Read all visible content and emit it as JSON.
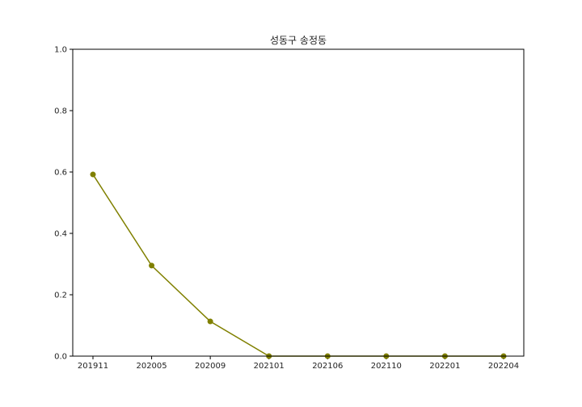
{
  "chart_data": {
    "type": "line",
    "title": "성동구 송정동",
    "xlabel": "",
    "ylabel": "",
    "categories": [
      "201911",
      "202005",
      "202009",
      "202101",
      "202106",
      "202110",
      "202201",
      "202204"
    ],
    "series": [
      {
        "values": [
          0.592,
          0.295,
          0.113,
          0.0,
          0.0,
          0.0,
          0.0,
          0.0
        ]
      }
    ],
    "ylim": [
      0.0,
      1.0
    ],
    "yticks": [
      "0.0",
      "0.2",
      "0.4",
      "0.6",
      "0.8",
      "1.0"
    ],
    "grid": false,
    "line_color": "#808000",
    "marker": "circle"
  }
}
